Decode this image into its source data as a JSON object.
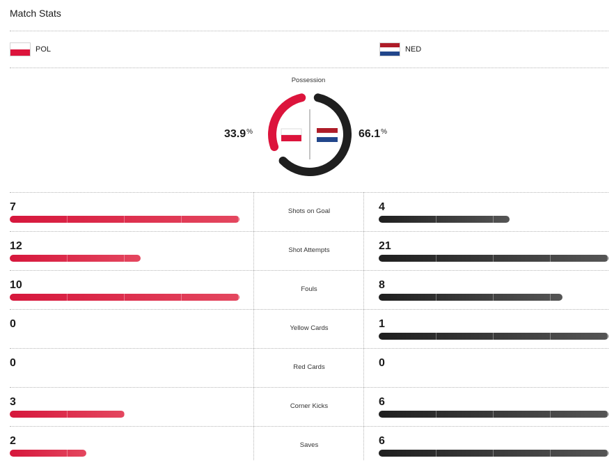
{
  "header": {
    "title": "Match Stats"
  },
  "teams": {
    "home": {
      "abbr": "POL",
      "flag_icon": "poland-flag-icon",
      "color": "#dc143c"
    },
    "away": {
      "abbr": "NED",
      "flag_icon": "netherlands-flag-icon",
      "color": "#1f1f1f"
    }
  },
  "possession": {
    "label": "Possession",
    "home_value": "33.9",
    "away_value": "66.1",
    "unit": "%",
    "home_fraction": 0.339,
    "away_fraction": 0.661
  },
  "stats": [
    {
      "label": "Shots on Goal",
      "home": "7",
      "away": "4",
      "home_fill": 1.0,
      "away_fill": 0.571
    },
    {
      "label": "Shot Attempts",
      "home": "12",
      "away": "21",
      "home_fill": 0.571,
      "away_fill": 1.0
    },
    {
      "label": "Fouls",
      "home": "10",
      "away": "8",
      "home_fill": 1.0,
      "away_fill": 0.8
    },
    {
      "label": "Yellow Cards",
      "home": "0",
      "away": "1",
      "home_fill": 0.0,
      "away_fill": 1.0
    },
    {
      "label": "Red Cards",
      "home": "0",
      "away": "0",
      "home_fill": 0.0,
      "away_fill": 0.0
    },
    {
      "label": "Corner Kicks",
      "home": "3",
      "away": "6",
      "home_fill": 0.5,
      "away_fill": 1.0
    },
    {
      "label": "Saves",
      "home": "2",
      "away": "6",
      "home_fill": 0.333,
      "away_fill": 1.0
    }
  ]
}
